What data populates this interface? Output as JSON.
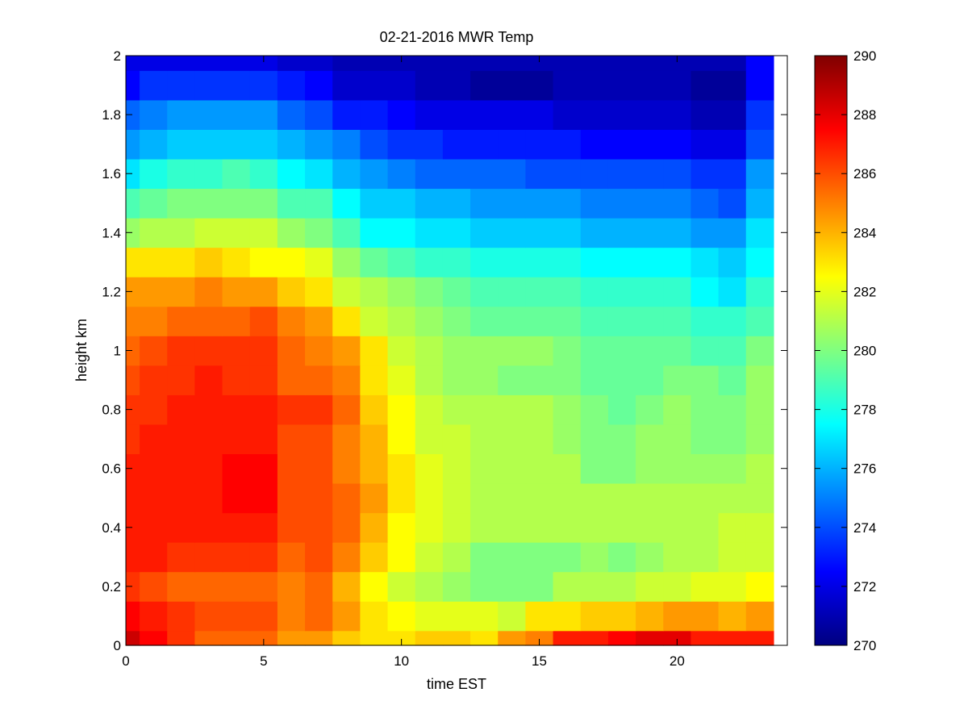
{
  "chart_data": {
    "type": "heatmap",
    "title": "02-21-2016 MWR Temp",
    "xlabel": "time EST",
    "ylabel": "height km",
    "xlim": [
      0,
      24
    ],
    "ylim": [
      0,
      2
    ],
    "xticks": [
      0,
      5,
      10,
      15,
      20
    ],
    "yticks": [
      0,
      0.2,
      0.4,
      0.6,
      0.8,
      1,
      1.2,
      1.4,
      1.6,
      1.8,
      2
    ],
    "x_edges": [
      0,
      0.5,
      1.5,
      2.5,
      3.5,
      4.5,
      5.5,
      6.5,
      7.5,
      8.5,
      9.5,
      10.5,
      11.5,
      12.5,
      13.5,
      14.5,
      15.5,
      16.5,
      17.5,
      18.5,
      19.5,
      20.5,
      21.5,
      22.5,
      23.5
    ],
    "y_edges": [
      0,
      0.05,
      0.15,
      0.25,
      0.35,
      0.45,
      0.55,
      0.65,
      0.75,
      0.85,
      0.95,
      1.05,
      1.15,
      1.25,
      1.35,
      1.45,
      1.55,
      1.65,
      1.75,
      1.85,
      1.95,
      2.0
    ],
    "colorbar": {
      "colormap": "jet",
      "clim": [
        270,
        290
      ],
      "ticks": [
        270,
        272,
        274,
        276,
        278,
        280,
        282,
        284,
        286,
        288,
        290
      ]
    },
    "z": [
      [
        288.5,
        287.5,
        286.5,
        285.5,
        285.5,
        285.5,
        284.5,
        284.5,
        283.5,
        283.0,
        283.0,
        283.5,
        283.5,
        283.0,
        284.5,
        285.0,
        287.0,
        287.0,
        287.5,
        288.0,
        288.0,
        287.0,
        287.0,
        287.0
      ],
      [
        287.5,
        287.0,
        286.5,
        286.0,
        286.0,
        286.0,
        285.0,
        285.5,
        284.5,
        283.0,
        282.5,
        282.0,
        282.0,
        282.0,
        281.5,
        283.0,
        283.0,
        283.5,
        283.5,
        284.0,
        284.5,
        284.5,
        284.0,
        284.5
      ],
      [
        286.5,
        286.0,
        285.5,
        285.5,
        285.5,
        285.5,
        285.0,
        285.5,
        284.0,
        282.5,
        281.5,
        281.0,
        280.5,
        280.0,
        280.0,
        280.0,
        281.0,
        281.0,
        281.0,
        281.5,
        281.5,
        282.0,
        282.0,
        282.5
      ],
      [
        287.0,
        287.0,
        286.5,
        286.5,
        286.5,
        286.5,
        285.5,
        286.0,
        285.0,
        283.5,
        282.5,
        281.5,
        281.0,
        280.0,
        280.0,
        280.0,
        280.0,
        280.5,
        280.0,
        280.5,
        281.0,
        281.0,
        281.5,
        281.5
      ],
      [
        287.0,
        287.0,
        287.0,
        287.0,
        287.0,
        287.0,
        286.0,
        286.0,
        285.5,
        284.0,
        282.5,
        282.0,
        281.5,
        281.0,
        281.0,
        281.0,
        281.0,
        281.0,
        281.0,
        281.0,
        281.0,
        281.0,
        281.5,
        281.5
      ],
      [
        287.0,
        287.0,
        287.0,
        287.0,
        287.5,
        287.5,
        286.0,
        286.0,
        285.5,
        284.5,
        283.0,
        282.0,
        281.5,
        281.0,
        281.0,
        281.0,
        281.0,
        281.0,
        281.0,
        281.0,
        281.0,
        281.0,
        281.0,
        281.0
      ],
      [
        287.0,
        287.0,
        287.0,
        287.0,
        287.5,
        287.5,
        286.0,
        286.0,
        285.0,
        284.0,
        283.0,
        282.0,
        281.5,
        281.0,
        281.0,
        281.0,
        281.0,
        280.0,
        280.0,
        280.5,
        280.5,
        280.5,
        280.5,
        281.0
      ],
      [
        286.5,
        287.0,
        287.0,
        287.0,
        287.0,
        287.0,
        286.0,
        286.0,
        285.0,
        284.0,
        282.5,
        281.5,
        281.5,
        281.0,
        281.0,
        281.0,
        280.5,
        280.0,
        280.0,
        280.5,
        280.5,
        280.0,
        280.0,
        280.5
      ],
      [
        286.5,
        286.5,
        287.0,
        287.0,
        287.0,
        287.0,
        286.5,
        286.5,
        285.5,
        283.5,
        282.5,
        281.5,
        281.0,
        281.0,
        281.0,
        281.0,
        280.5,
        280.0,
        279.5,
        280.0,
        280.5,
        280.0,
        280.0,
        280.5
      ],
      [
        286.0,
        286.5,
        286.5,
        287.0,
        286.5,
        286.5,
        285.5,
        285.5,
        285.0,
        283.0,
        282.0,
        281.0,
        280.5,
        280.5,
        280.0,
        280.0,
        280.0,
        279.5,
        279.5,
        279.5,
        280.0,
        280.0,
        279.5,
        280.5
      ],
      [
        285.5,
        286.0,
        286.5,
        286.5,
        286.5,
        286.5,
        285.5,
        285.0,
        284.5,
        283.0,
        281.5,
        281.0,
        280.5,
        280.5,
        280.5,
        280.5,
        280.0,
        279.5,
        279.5,
        279.5,
        279.5,
        279.0,
        279.0,
        280.0
      ],
      [
        285.0,
        285.0,
        285.5,
        285.5,
        285.5,
        286.0,
        285.0,
        284.5,
        283.0,
        281.5,
        281.0,
        280.5,
        280.0,
        279.5,
        279.5,
        279.5,
        279.5,
        279.0,
        279.0,
        279.0,
        279.0,
        278.5,
        278.5,
        279.0
      ],
      [
        284.5,
        284.5,
        284.5,
        285.0,
        284.5,
        284.5,
        283.5,
        283.0,
        281.5,
        281.0,
        280.5,
        280.0,
        279.5,
        279.0,
        279.0,
        279.0,
        279.0,
        278.5,
        278.5,
        278.5,
        278.5,
        277.5,
        277.0,
        278.5
      ],
      [
        283.0,
        283.0,
        283.0,
        283.5,
        283.0,
        282.5,
        282.5,
        282.0,
        280.5,
        279.5,
        279.0,
        278.5,
        278.5,
        278.0,
        278.0,
        278.0,
        278.0,
        277.5,
        277.5,
        277.5,
        277.5,
        277.0,
        276.5,
        277.5
      ],
      [
        280.5,
        281.0,
        281.0,
        281.5,
        281.5,
        281.5,
        280.5,
        280.0,
        279.0,
        277.5,
        277.5,
        277.0,
        277.0,
        276.5,
        276.5,
        276.5,
        276.5,
        276.0,
        276.0,
        276.0,
        276.0,
        275.5,
        275.5,
        277.0
      ],
      [
        279.0,
        279.5,
        280.0,
        280.0,
        280.0,
        280.0,
        279.0,
        279.0,
        277.5,
        276.5,
        276.5,
        276.0,
        276.0,
        275.5,
        275.5,
        275.5,
        275.5,
        275.0,
        275.0,
        275.0,
        275.0,
        274.5,
        274.0,
        276.0
      ],
      [
        277.0,
        278.0,
        278.5,
        278.5,
        279.0,
        278.5,
        277.5,
        277.0,
        276.0,
        275.5,
        275.0,
        274.5,
        274.5,
        274.5,
        274.5,
        274.0,
        274.0,
        274.0,
        274.0,
        274.0,
        274.0,
        273.5,
        273.5,
        275.5
      ],
      [
        275.5,
        276.0,
        276.5,
        276.5,
        276.5,
        276.5,
        276.0,
        275.5,
        275.0,
        274.0,
        273.5,
        273.5,
        273.0,
        273.0,
        273.0,
        273.0,
        273.0,
        272.5,
        272.5,
        272.5,
        272.5,
        272.0,
        272.0,
        274.0
      ],
      [
        274.5,
        275.0,
        275.5,
        275.5,
        275.5,
        275.5,
        274.5,
        274.0,
        273.0,
        273.0,
        272.5,
        272.0,
        272.0,
        272.0,
        272.0,
        272.0,
        271.5,
        271.5,
        271.5,
        271.5,
        271.5,
        271.0,
        271.0,
        273.5
      ],
      [
        272.5,
        273.5,
        273.5,
        273.5,
        273.5,
        273.5,
        273.0,
        272.5,
        271.5,
        271.5,
        271.5,
        271.0,
        271.0,
        270.5,
        270.5,
        270.5,
        271.0,
        271.0,
        271.0,
        271.0,
        271.0,
        270.5,
        270.5,
        272.5
      ],
      [
        272.0,
        272.0,
        272.0,
        272.0,
        272.0,
        272.0,
        271.5,
        271.5,
        271.0,
        271.0,
        271.0,
        271.0,
        271.0,
        271.0,
        271.0,
        271.0,
        271.0,
        271.0,
        271.0,
        271.0,
        271.0,
        271.0,
        271.0,
        272.5
      ]
    ]
  }
}
